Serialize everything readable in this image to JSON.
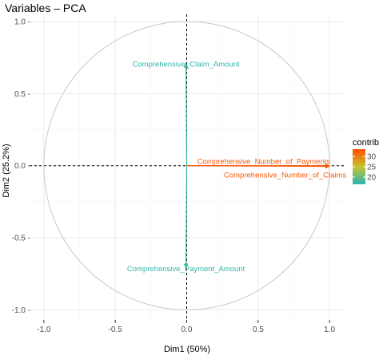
{
  "chart_data": {
    "type": "scatter",
    "subtype": "pca-variable-correlation-circle",
    "title": "Variables – PCA",
    "xlabel": "Dim1 (50%)",
    "ylabel": "Dim2 (25.2%)",
    "xlim": [
      -1.1,
      1.1
    ],
    "ylim": [
      -1.07,
      1.05
    ],
    "xticks": [
      -1.0,
      -0.5,
      0.0,
      0.5,
      1.0
    ],
    "xtick_labels": [
      "-1.0",
      "-0.5",
      "0.0",
      "0.5",
      "1.0"
    ],
    "yticks": [
      -1.0,
      -0.5,
      0.0,
      0.5,
      1.0
    ],
    "ytick_labels": [
      "-1.0 -",
      "-0.5 -",
      "0.0 -",
      "0.5 -",
      "1.0 -"
    ],
    "grid": true,
    "unit_circle": true,
    "points": [
      {
        "label": "Comprehensive_Claim_Amount",
        "x": -0.005,
        "y": 0.71,
        "contrib": 17
      },
      {
        "label": "Comprehensive_Payment_Amount",
        "x": -0.005,
        "y": -0.71,
        "contrib": 17
      },
      {
        "label": "Comprehensive_Number_of_Payments",
        "x": 1.0,
        "y": 0.0,
        "contrib": 33
      },
      {
        "label": "Comprehensive_Number_of_Claims",
        "x": 1.0,
        "y": -0.005,
        "contrib": 33
      }
    ],
    "legend": {
      "title": "contrib",
      "ticks": [
        20,
        25,
        30
      ],
      "tick_labels": [
        "20",
        "25",
        "30"
      ],
      "range": [
        16.5,
        33.5
      ],
      "placement": "right",
      "colors": [
        "#2bb5b0",
        "#c8c230",
        "#ff4e00"
      ]
    }
  }
}
